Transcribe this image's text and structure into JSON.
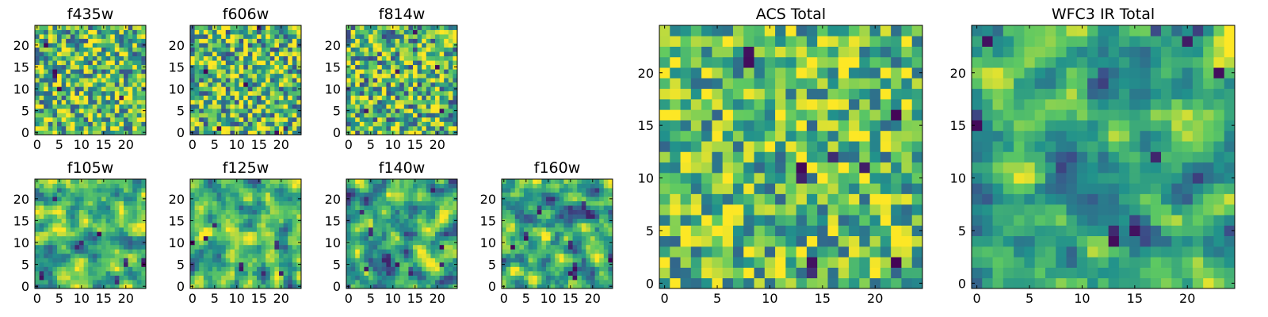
{
  "colormap": "viridis",
  "colors": {
    "background": "#ffffff",
    "frame": "#000000",
    "viridis_stops": [
      "#440154",
      "#3b528b",
      "#21918c",
      "#5ec962",
      "#fde725"
    ]
  },
  "chart_data": [
    {
      "type": "heatmap",
      "title": "f435w",
      "rows": 25,
      "cols": 25,
      "value_range": [
        0,
        1
      ],
      "xticks": [
        "0",
        "5",
        "10",
        "15",
        "20"
      ],
      "yticks": [
        "0",
        "5",
        "10",
        "15",
        "20"
      ],
      "seed": 11,
      "smooth": 0,
      "mean": 0.7,
      "spread": 0.45,
      "dark_spots": 5
    },
    {
      "type": "heatmap",
      "title": "f606w",
      "rows": 25,
      "cols": 25,
      "value_range": [
        0,
        1
      ],
      "xticks": [
        "0",
        "5",
        "10",
        "15",
        "20"
      ],
      "yticks": [
        "0",
        "5",
        "10",
        "15",
        "20"
      ],
      "seed": 23,
      "smooth": 0,
      "mean": 0.68,
      "spread": 0.45,
      "dark_spots": 6
    },
    {
      "type": "heatmap",
      "title": "f814w",
      "rows": 25,
      "cols": 25,
      "value_range": [
        0,
        1
      ],
      "xticks": [
        "0",
        "5",
        "10",
        "15",
        "20"
      ],
      "yticks": [
        "0",
        "5",
        "10",
        "15",
        "20"
      ],
      "seed": 37,
      "smooth": 0,
      "mean": 0.66,
      "spread": 0.45,
      "dark_spots": 5
    },
    {
      "type": "heatmap",
      "title": "f105w",
      "rows": 25,
      "cols": 25,
      "value_range": [
        0,
        1
      ],
      "xticks": [
        "0",
        "5",
        "10",
        "15",
        "20"
      ],
      "yticks": [
        "0",
        "5",
        "10",
        "15",
        "20"
      ],
      "seed": 51,
      "smooth": 1,
      "mean": 0.62,
      "spread": 0.5,
      "dark_spots": 7
    },
    {
      "type": "heatmap",
      "title": "f125w",
      "rows": 25,
      "cols": 25,
      "value_range": [
        0,
        1
      ],
      "xticks": [
        "0",
        "5",
        "10",
        "15",
        "20"
      ],
      "yticks": [
        "0",
        "5",
        "10",
        "15",
        "20"
      ],
      "seed": 67,
      "smooth": 1,
      "mean": 0.62,
      "spread": 0.5,
      "dark_spots": 6
    },
    {
      "type": "heatmap",
      "title": "f140w",
      "rows": 25,
      "cols": 25,
      "value_range": [
        0,
        1
      ],
      "xticks": [
        "0",
        "5",
        "10",
        "15",
        "20"
      ],
      "yticks": [
        "0",
        "5",
        "10",
        "15",
        "20"
      ],
      "seed": 79,
      "smooth": 1,
      "mean": 0.6,
      "spread": 0.5,
      "dark_spots": 8
    },
    {
      "type": "heatmap",
      "title": "f160w",
      "rows": 25,
      "cols": 25,
      "value_range": [
        0,
        1
      ],
      "xticks": [
        "0",
        "5",
        "10",
        "15",
        "20"
      ],
      "yticks": [
        "0",
        "5",
        "10",
        "15",
        "20"
      ],
      "seed": 97,
      "smooth": 1,
      "mean": 0.6,
      "spread": 0.5,
      "dark_spots": 9
    },
    {
      "type": "heatmap",
      "title": "ACS Total",
      "rows": 25,
      "cols": 25,
      "value_range": [
        0,
        1
      ],
      "xticks": [
        "0",
        "5",
        "10",
        "15",
        "20"
      ],
      "yticks": [
        "0",
        "5",
        "10",
        "15",
        "20"
      ],
      "seed": 131,
      "smooth": 0,
      "mean": 0.7,
      "spread": 0.38,
      "dark_spots": 10
    },
    {
      "type": "heatmap",
      "title": "WFC3 IR Total",
      "rows": 25,
      "cols": 25,
      "value_range": [
        0,
        1
      ],
      "xticks": [
        "0",
        "5",
        "10",
        "15",
        "20"
      ],
      "yticks": [
        "0",
        "5",
        "10",
        "15",
        "20"
      ],
      "seed": 173,
      "smooth": 1,
      "mean": 0.64,
      "spread": 0.45,
      "dark_spots": 9
    }
  ]
}
